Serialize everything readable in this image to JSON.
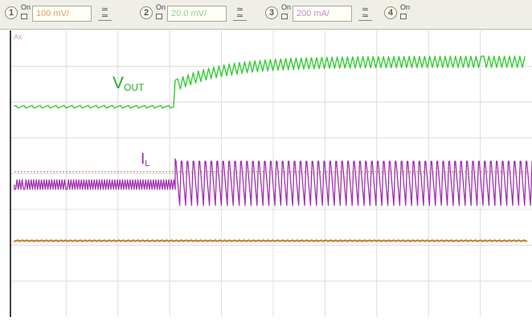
{
  "toolbar": {
    "channels": [
      {
        "number": "1",
        "on_label": "On",
        "scale": "100 mV/",
        "color": "#d8a070"
      },
      {
        "number": "2",
        "on_label": "On",
        "scale": "20.0 mV/",
        "color": "#8fcf8f"
      },
      {
        "number": "3",
        "on_label": "On",
        "scale": "200 mA/",
        "color": "#c090c8"
      },
      {
        "number": "4",
        "on_label": "On"
      }
    ]
  },
  "screen": {
    "axis_marker": "Ax",
    "grid_color": "#dcdcdc",
    "trace_labels": {
      "vout": {
        "main": "V",
        "sub": "OUT",
        "color": "#22aa22"
      },
      "il": {
        "main": "I",
        "sub": "L",
        "color": "#9030a0"
      }
    },
    "traces": [
      {
        "name": "VOUT",
        "color": "#33cc33"
      },
      {
        "name": "IL",
        "color": "#a030b0"
      },
      {
        "name": "CH1",
        "color": "#c87820"
      }
    ]
  }
}
